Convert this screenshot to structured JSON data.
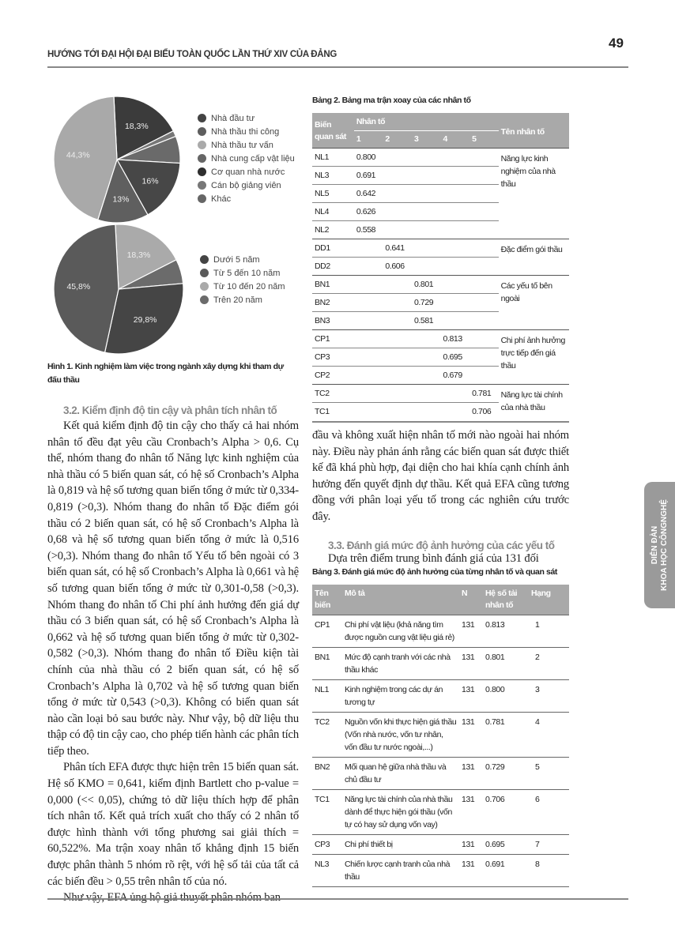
{
  "header": {
    "running_title": "HƯỚNG TỚI ĐẠI HỘI ĐẠI BIỂU TOÀN QUỐC LẦN THỨ XIV CỦA ĐẢNG",
    "page_number": "49"
  },
  "side_tab": {
    "line1": "DIỄN ĐÀN",
    "line2": "KHOA HỌC CÔNGNGHỆ"
  },
  "chart_data": [
    {
      "type": "pie",
      "slices": [
        {
          "label": "Nhà đầu tư",
          "value": 18.3,
          "data_label": "18,3%",
          "color": "#3b3b3b"
        },
        {
          "label": "Cán bộ giảng viên",
          "value": 1.5,
          "data_label": "",
          "color": "#777777"
        },
        {
          "label": "Nhà cung cấp vật liệu",
          "value": 6.9,
          "data_label": "",
          "color": "#6a6a6a"
        },
        {
          "label": "Cơ quan nhà nước",
          "value": 16,
          "data_label": "16%",
          "color": "#474747"
        },
        {
          "label": "Nhà thầu thi công",
          "value": 13,
          "data_label": "13%",
          "color": "#5f5f5f"
        },
        {
          "label": "Nhà thầu tư vấn",
          "value": 44.3,
          "data_label": "44,3%",
          "color": "#a9a9a9"
        }
      ],
      "legend": [
        {
          "label": "Nhà đầu tư",
          "color": "#444444"
        },
        {
          "label": "Nhà thầu thi công",
          "color": "#5e5e5e"
        },
        {
          "label": "Nhà thầu tư vấn",
          "color": "#aaaaaa"
        },
        {
          "label": "Nhà cung cấp vật liệu",
          "color": "#666666"
        },
        {
          "label": "Cơ quan nhà nước",
          "color": "#2f2f2f"
        },
        {
          "label": "Cán bộ giảng viên",
          "color": "#777777"
        },
        {
          "label": "Khác",
          "color": "#666666"
        }
      ],
      "legend_position": "right"
    },
    {
      "type": "pie",
      "slices": [
        {
          "label": "Từ 10 đến 20 năm",
          "value": 18.3,
          "data_label": "18,3%",
          "color": "#aaaaaa"
        },
        {
          "label": "Trên 20 năm",
          "value": 6.1,
          "data_label": "",
          "color": "#6b6b6b"
        },
        {
          "label": "Dưới 5 năm",
          "value": 29.8,
          "data_label": "29,8%",
          "color": "#454545"
        },
        {
          "label": "Từ 5 đến 10 năm",
          "value": 45.8,
          "data_label": "45,8%",
          "color": "#5a5a5a"
        }
      ],
      "legend": [
        {
          "label": "Dưới 5 năm",
          "color": "#444444"
        },
        {
          "label": "Từ 5 đến 10 năm",
          "color": "#5a5a5a"
        },
        {
          "label": "Từ 10 đến 20 năm",
          "color": "#aaaaaa"
        },
        {
          "label": "Trên 20 năm",
          "color": "#6b6b6b"
        }
      ],
      "legend_position": "right"
    }
  ],
  "figure1_caption": "Hình 1. Kinh nghiệm làm việc trong ngành xây dựng khi tham dự đấu thầu",
  "left": {
    "heading": "3.2. Kiểm định độ tin cậy và phân tích nhân tố",
    "p1": "Kết quả kiểm định độ tin cậy cho thấy cả hai nhóm nhân tố đều đạt yêu cầu Cronbach’s Alpha > 0,6. Cụ thể, nhóm thang đo nhân tố Năng lực kinh nghiệm của nhà thầu có 5 biến quan sát, có hệ số Cronbach’s Alpha là 0,819 và hệ số tương quan biến tổng ở mức từ 0,334-0,819 (>0,3). Nhóm thang đo nhân tố Đặc điểm gói thầu có 2 biến quan sát, có hệ số Cronbach’s Alpha là 0,68 và hệ số tương quan biến tổng ở mức là 0,516 (>0,3). Nhóm thang đo nhân tố Yếu tố bên ngoài có 3 biến quan sát, có hệ số Cronbach’s Alpha là 0,661 và hệ số tương quan biến tổng ở mức từ 0,301-0,58 (>0,3). Nhóm thang đo nhân tố Chi phí ảnh hưởng đến giá dự thầu có 3 biến quan sát, có hệ số Cronbach’s Alpha là 0,662 và hệ số tương quan biến tổng ở mức từ 0,302-0,582 (>0,3). Nhóm thang đo nhân tố Điều kiện tài chính của nhà thầu có 2 biến quan sát, có hệ số Cronbach’s Alpha là 0,702 và hệ số tương quan biến tổng ở mức từ 0,543 (>0,3). Không có biến quan sát nào cần loại bỏ sau bước này. Như vậy, bộ dữ liệu thu thập có độ tin cậy cao, cho phép tiến hành các phân tích tiếp theo.",
    "p2": "Phân tích EFA được thực hiện trên 15 biến quan sát. Hệ số KMO = 0,641, kiểm định Bartlett cho p-value = 0,000 (<< 0,05), chứng tỏ dữ liệu thích hợp để phân tích nhân tố. Kết quả trích xuất cho thấy có 2 nhân tố được hình thành với tổng phương sai giải thích = 60,522%. Ma trận xoay nhân tố khẳng định 15 biến được phân thành 5 nhóm rõ rệt, với hệ số tải của tất cả các biến đều > 0,55 trên nhân tố của nó.",
    "p3": "Như vậy, EFA ủng hộ giả thuyết phân nhóm ban"
  },
  "right": {
    "p3_cont": "đầu và không xuất hiện nhân tố mới nào ngoài hai nhóm này. Điều này phản ánh rằng các biến quan sát được thiết kế đã khá phù hợp, đại diện cho hai khía cạnh chính ảnh hưởng đến quyết định dự thầu. Kết quả EFA cũng tương đồng với phân loại yếu tố trong các nghiên cứu trước đây.",
    "heading": "3.3. Đánh giá mức độ ảnh hưởng của các yếu tố",
    "p4": "Dựa trên điểm trung bình đánh giá của 131 đối"
  },
  "table2": {
    "caption": "Bảng 2. Bảng ma trận xoay của các nhân tố",
    "headers": {
      "var": "Biến quan sát",
      "factor": "Nhân tố",
      "name": "Tên nhân tố",
      "nums": [
        "1",
        "2",
        "3",
        "4",
        "5"
      ]
    },
    "groups": [
      {
        "name": "Năng lực kinh nghiệm của nhà thầu",
        "rows": [
          [
            "NL1",
            "0.800"
          ],
          [
            "NL3",
            "0.691"
          ],
          [
            "NL5",
            "0.642"
          ],
          [
            "NL4",
            "0.626"
          ],
          [
            "NL2",
            "0.558"
          ]
        ],
        "col": 0
      },
      {
        "name": "Đặc điểm gói thầu",
        "rows": [
          [
            "DD1",
            "0.641"
          ],
          [
            "DD2",
            "0.606"
          ]
        ],
        "col": 1
      },
      {
        "name": "Các yếu tố bên ngoài",
        "rows": [
          [
            "BN1",
            "0.801"
          ],
          [
            "BN2",
            "0.729"
          ],
          [
            "BN3",
            "0.581"
          ]
        ],
        "col": 2
      },
      {
        "name": "Chi phí ảnh hưởng trực tiếp đến giá thầu",
        "rows": [
          [
            "CP1",
            "0.813"
          ],
          [
            "CP3",
            "0.695"
          ],
          [
            "CP2",
            "0.679"
          ]
        ],
        "col": 3
      },
      {
        "name": "Năng lực tài chính của nhà thầu",
        "rows": [
          [
            "TC2",
            "0.781"
          ],
          [
            "TC1",
            "0.706"
          ]
        ],
        "col": 4
      }
    ]
  },
  "table3": {
    "caption": "Bảng 3. Đánh giá mức độ ảnh hưởng của từng nhân tố và quan sát",
    "headers": [
      "Tên biến",
      "Mô tả",
      "N",
      "Hệ số tải nhân tố",
      "Hạng"
    ],
    "rows": [
      [
        "CP1",
        "Chi phí vật liệu (khả năng tìm được nguồn cung vật liệu giá rẻ)",
        "131",
        "0.813",
        "1"
      ],
      [
        "BN1",
        "Mức độ cạnh tranh với các nhà thầu khác",
        "131",
        "0.801",
        "2"
      ],
      [
        "NL1",
        "Kinh nghiệm trong các dự án tương tự",
        "131",
        "0.800",
        "3"
      ],
      [
        "TC2",
        "Nguồn vốn khi thực hiện giá thầu (Vốn nhà nước, vốn tư nhân, vốn đầu tư nước ngoài,...)",
        "131",
        "0.781",
        "4"
      ],
      [
        "BN2",
        "Mối quan hệ giữa nhà thầu và chủ đầu tư",
        "131",
        "0.729",
        "5"
      ],
      [
        "TC1",
        "Năng lực tài chính của nhà thầu dành để thực hiện gói thầu (vốn tự có hay sử dụng vốn vay)",
        "131",
        "0.706",
        "6"
      ],
      [
        "CP3",
        "Chi phí thiết bị",
        "131",
        "0.695",
        "7"
      ],
      [
        "NL3",
        "Chiến lược cạnh tranh của nhà thầu",
        "131",
        "0.691",
        "8"
      ]
    ]
  }
}
